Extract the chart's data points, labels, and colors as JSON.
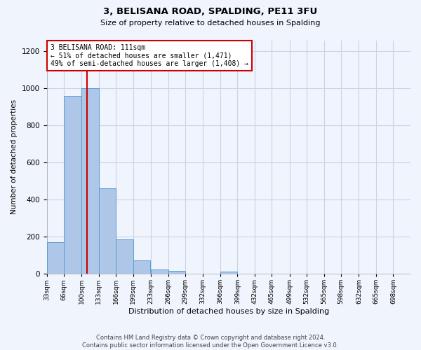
{
  "title": "3, BELISANA ROAD, SPALDING, PE11 3FU",
  "subtitle": "Size of property relative to detached houses in Spalding",
  "xlabel": "Distribution of detached houses by size in Spalding",
  "ylabel": "Number of detached properties",
  "bin_labels": [
    "33sqm",
    "66sqm",
    "100sqm",
    "133sqm",
    "166sqm",
    "199sqm",
    "233sqm",
    "266sqm",
    "299sqm",
    "332sqm",
    "366sqm",
    "399sqm",
    "432sqm",
    "465sqm",
    "499sqm",
    "532sqm",
    "565sqm",
    "598sqm",
    "632sqm",
    "665sqm",
    "698sqm"
  ],
  "bar_values": [
    170,
    960,
    1000,
    460,
    185,
    73,
    25,
    15,
    0,
    0,
    10,
    0,
    0,
    0,
    0,
    0,
    0,
    0,
    0,
    0,
    0
  ],
  "bar_color": "#aec6e8",
  "bar_edge_color": "#5a9ed4",
  "property_line_x": 111,
  "bin_edges": [
    33,
    66,
    100,
    133,
    166,
    199,
    233,
    266,
    299,
    332,
    366,
    399,
    432,
    465,
    499,
    532,
    565,
    598,
    632,
    665,
    698,
    731
  ],
  "annotation_line1": "3 BELISANA ROAD: 111sqm",
  "annotation_line2": "← 51% of detached houses are smaller (1,471)",
  "annotation_line3": "49% of semi-detached houses are larger (1,408) →",
  "annotation_box_color": "#ffffff",
  "annotation_box_edge": "#cc0000",
  "vline_color": "#cc0000",
  "ylim": [
    0,
    1260
  ],
  "yticks": [
    0,
    200,
    400,
    600,
    800,
    1000,
    1200
  ],
  "footer": "Contains HM Land Registry data © Crown copyright and database right 2024.\nContains public sector information licensed under the Open Government Licence v3.0.",
  "bg_color": "#f0f4fc",
  "grid_color": "#c8d4e8"
}
